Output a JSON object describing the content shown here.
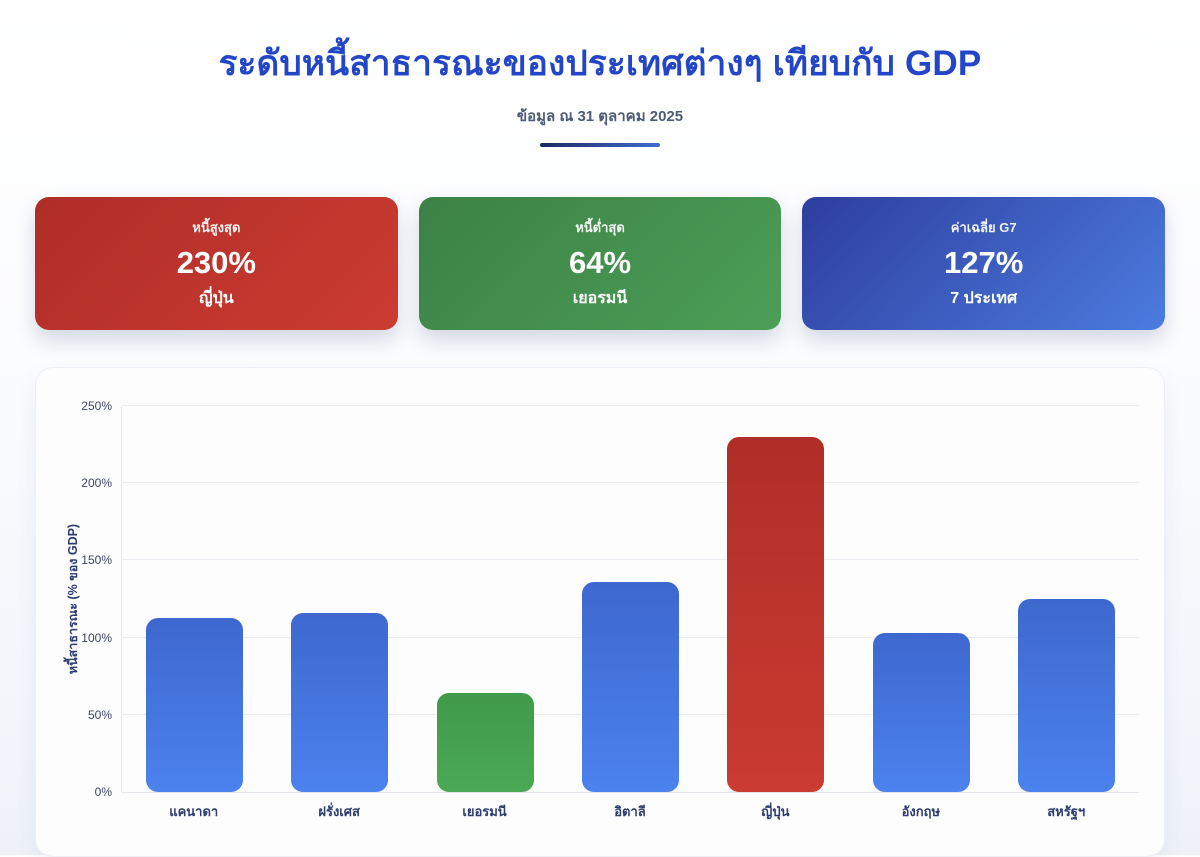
{
  "header": {
    "title": "ระดับหนี้สาธารณะของประเทศต่างๆ เทียบกับ GDP",
    "subtitle": "ข้อมูล ณ 31 ตุลาคม 2025"
  },
  "stat_cards": [
    {
      "label": "หนี้สูงสุด",
      "value": "230%",
      "sub": "ญี่ปุ่น",
      "theme": "red"
    },
    {
      "label": "หนี้ต่ำสุด",
      "value": "64%",
      "sub": "เยอรมนี",
      "theme": "green"
    },
    {
      "label": "ค่าเฉลี่ย G7",
      "value": "127%",
      "sub": "7 ประเทศ",
      "theme": "blue"
    }
  ],
  "chart_data": {
    "type": "bar",
    "title": "ระดับหนี้สาธารณะของประเทศต่างๆ เทียบกับ GDP",
    "categories": [
      "แคนาดา",
      "ฝรั่งเศส",
      "เยอรมนี",
      "อิตาลี",
      "ญี่ปุ่น",
      "อังกฤษ",
      "สหรัฐฯ"
    ],
    "values": [
      113,
      116,
      64,
      136,
      230,
      103,
      125
    ],
    "bar_themes": [
      "blue",
      "blue",
      "green",
      "blue",
      "red",
      "blue",
      "blue"
    ],
    "xlabel": "",
    "ylabel": "หนี้สาธารณะ (% ของ GDP)",
    "yticks": [
      "0%",
      "50%",
      "100%",
      "150%",
      "200%",
      "250%"
    ],
    "ytick_values": [
      0,
      50,
      100,
      150,
      200,
      250
    ],
    "ylim": [
      0,
      250
    ],
    "grid": true,
    "legend": false
  },
  "colors": {
    "title_blue": "#2346c8",
    "subtitle_grey": "#4d5b76",
    "bar_blue_top": "#3e68cf",
    "bar_blue_bottom": "#4b82ee",
    "bar_red_top": "#b02e28",
    "bar_red_bottom": "#ca3b31",
    "bar_green_top": "#3f9a49",
    "bar_green_bottom": "#4ba955",
    "card_red_from": "#b02d27",
    "card_red_to": "#cb3c32",
    "card_green_from": "#3c8145",
    "card_green_to": "#4c9e57",
    "card_blue_from": "#2d3e9e",
    "card_blue_to": "#4c7bdf"
  }
}
